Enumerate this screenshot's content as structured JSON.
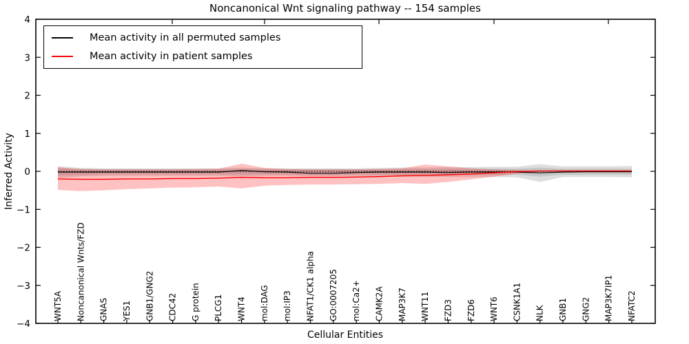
{
  "chart_data": {
    "type": "line",
    "title": "Noncanonical Wnt signaling pathway -- 154 samples",
    "xlabel": "Cellular Entities",
    "ylabel": "Inferred Activity",
    "ylim": [
      -4,
      4
    ],
    "yticks": [
      4,
      3,
      2,
      1,
      0,
      -1,
      -2,
      -3,
      -4
    ],
    "grid": false,
    "legend_position": "upper left",
    "zero_line": {
      "y": 0,
      "style": "dotted",
      "color": "#000000"
    },
    "categories": [
      "WNT5A",
      "Noncanonical Wnts/FZD",
      "GNAS",
      "YES1",
      "GNB1/GNG2",
      "CDC42",
      "G protein",
      "PLCG1",
      "WNT4",
      "mol:DAG",
      "mol:IP3",
      "NFAT1/CK1 alpha",
      "GO:0007205",
      "mol:Ca2+",
      "CAMK2A",
      "MAP3K7",
      "WNT11",
      "FZD3",
      "FZD6",
      "WNT6",
      "CSNK1A1",
      "NLK",
      "GNB1",
      "GNG2",
      "MAP3K7IP1",
      "NFATC2"
    ],
    "series": [
      {
        "name": "Mean activity in all permuted samples",
        "color": "#000000",
        "band_color": "rgba(0,0,0,0.13)",
        "band_inner_color": "rgba(0,0,0,0.10)",
        "values": [
          -0.02,
          -0.02,
          -0.02,
          -0.02,
          -0.02,
          -0.02,
          -0.02,
          -0.02,
          0.02,
          -0.01,
          -0.02,
          -0.05,
          -0.05,
          -0.03,
          -0.02,
          -0.02,
          -0.02,
          -0.03,
          -0.02,
          -0.02,
          -0.02,
          -0.04,
          -0.02,
          -0.01,
          -0.01,
          -0.01
        ],
        "band_upper": [
          0.13,
          0.09,
          0.08,
          0.08,
          0.08,
          0.08,
          0.08,
          0.08,
          0.1,
          0.08,
          0.08,
          0.08,
          0.08,
          0.08,
          0.09,
          0.1,
          0.1,
          0.11,
          0.11,
          0.12,
          0.12,
          0.19,
          0.13,
          0.13,
          0.13,
          0.14
        ],
        "band_lower": [
          -0.18,
          -0.13,
          -0.12,
          -0.12,
          -0.12,
          -0.12,
          -0.12,
          -0.12,
          -0.13,
          -0.12,
          -0.12,
          -0.13,
          -0.13,
          -0.12,
          -0.13,
          -0.14,
          -0.14,
          -0.15,
          -0.15,
          -0.15,
          -0.16,
          -0.28,
          -0.15,
          -0.15,
          -0.15,
          -0.16
        ],
        "band_inner_upper": [
          0.08,
          0.06,
          0.055,
          0.055,
          0.055,
          0.055,
          0.055,
          0.055,
          0.06,
          0.055,
          0.055,
          0.055,
          0.055,
          0.055,
          0.06,
          0.06,
          0.06,
          0.065,
          0.065,
          0.07,
          0.07,
          0.1,
          0.07,
          0.07,
          0.07,
          0.07
        ],
        "band_inner_lower": [
          -0.11,
          -0.09,
          -0.08,
          -0.08,
          -0.08,
          -0.08,
          -0.08,
          -0.08,
          -0.085,
          -0.08,
          -0.08,
          -0.085,
          -0.085,
          -0.08,
          -0.085,
          -0.09,
          -0.09,
          -0.09,
          -0.09,
          -0.09,
          -0.09,
          -0.14,
          -0.09,
          -0.09,
          -0.09,
          -0.09
        ]
      },
      {
        "name": "Mean activity in patient samples",
        "color": "#ff0000",
        "band_color": "rgba(255,0,0,0.24)",
        "values": [
          -0.2,
          -0.21,
          -0.21,
          -0.2,
          -0.2,
          -0.19,
          -0.19,
          -0.18,
          -0.16,
          -0.17,
          -0.17,
          -0.16,
          -0.16,
          -0.15,
          -0.14,
          -0.12,
          -0.11,
          -0.09,
          -0.07,
          -0.04,
          -0.01,
          0.01,
          0.01,
          0.01,
          0.01,
          0.01
        ],
        "band_upper": [
          0.11,
          0.06,
          0.05,
          0.05,
          0.05,
          0.05,
          0.06,
          0.07,
          0.2,
          0.09,
          0.06,
          0.05,
          0.05,
          0.05,
          0.06,
          0.08,
          0.18,
          0.13,
          0.08,
          0.05,
          0.03,
          0.02,
          0.015,
          0.015,
          0.015,
          0.015
        ],
        "band_lower": [
          -0.49,
          -0.52,
          -0.5,
          -0.47,
          -0.45,
          -0.43,
          -0.42,
          -0.4,
          -0.45,
          -0.38,
          -0.36,
          -0.35,
          -0.35,
          -0.34,
          -0.33,
          -0.31,
          -0.33,
          -0.28,
          -0.21,
          -0.14,
          -0.06,
          -0.01,
          0.0,
          0.0,
          0.0,
          0.0
        ]
      }
    ]
  },
  "legend": {
    "items": [
      {
        "label": "Mean activity in all permuted samples",
        "color": "#000000"
      },
      {
        "label": "Mean activity in patient samples",
        "color": "#ff0000"
      }
    ]
  }
}
